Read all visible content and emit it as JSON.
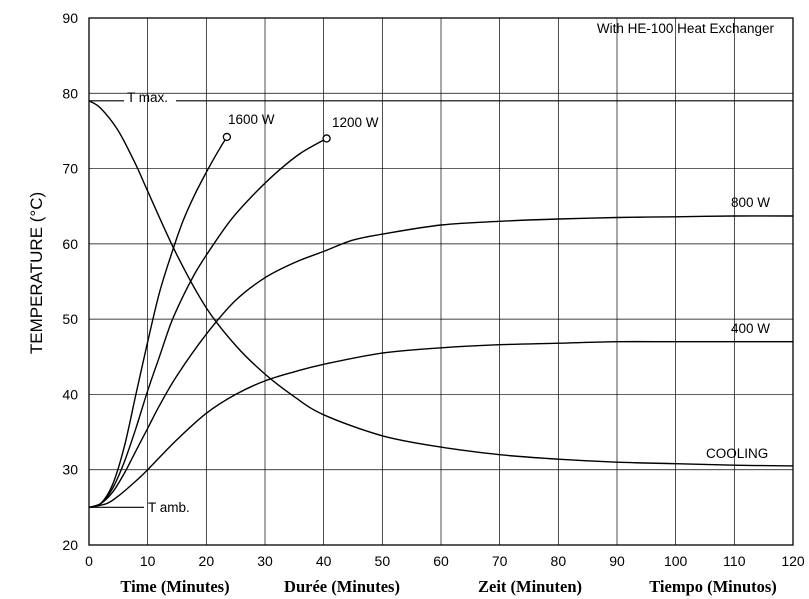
{
  "chart_data": {
    "type": "line",
    "title": "",
    "ylabel": "TEMPERATURE (°C)",
    "xlabels": [
      "Time  (Minutes)",
      "Durée  (Minutes)",
      "Zeit  (Minuten)",
      "Tiempo  (Minutos)"
    ],
    "xlim": [
      0,
      120
    ],
    "ylim": [
      20,
      90
    ],
    "xticks": [
      "0",
      "10",
      "20",
      "30",
      "40",
      "50",
      "60",
      "70",
      "80",
      "90",
      "100",
      "110",
      "120"
    ],
    "yticks": [
      "20",
      "30",
      "40",
      "50",
      "60",
      "70",
      "80",
      "90"
    ],
    "grid": true,
    "note": "With HE-100 Heat Exchanger",
    "tmax": {
      "label": "T max.",
      "value": 79
    },
    "tamb": {
      "label": "T amb.",
      "value": 25
    },
    "series": [
      {
        "name": "1600 W",
        "x": [
          0,
          2,
          4,
          6,
          8,
          10,
          12,
          14,
          16,
          18,
          20,
          22,
          23.5
        ],
        "y": [
          25,
          25.5,
          28,
          33,
          40,
          47,
          53.5,
          58.5,
          63,
          66.5,
          69.5,
          72.3,
          74.2
        ]
      },
      {
        "name": "1200 W",
        "x": [
          0,
          2,
          4,
          6,
          8,
          10,
          12,
          14,
          16,
          18,
          20,
          24,
          28,
          32,
          36,
          40.5
        ],
        "y": [
          25,
          25.5,
          27.5,
          31,
          35.5,
          40.5,
          45,
          49.5,
          53,
          56,
          58.5,
          63,
          66.5,
          69.5,
          72,
          74
        ]
      },
      {
        "name": "800 W",
        "x": [
          0,
          2,
          4,
          6,
          8,
          10,
          12,
          15,
          20,
          25,
          30,
          35,
          40,
          45,
          50,
          60,
          70,
          80,
          90,
          100,
          110,
          120
        ],
        "y": [
          25,
          25.5,
          27,
          29.5,
          32.5,
          35.5,
          38.5,
          42.5,
          48,
          52.5,
          55.5,
          57.5,
          59,
          60.5,
          61.3,
          62.5,
          63,
          63.3,
          63.5,
          63.6,
          63.7,
          63.7
        ]
      },
      {
        "name": "400 W",
        "x": [
          0,
          3,
          5,
          8,
          10,
          15,
          20,
          25,
          30,
          35,
          40,
          50,
          60,
          70,
          80,
          90,
          100,
          110,
          120
        ],
        "y": [
          25,
          25.5,
          26.5,
          28.5,
          30,
          34,
          37.5,
          40,
          41.8,
          43,
          44,
          45.5,
          46.2,
          46.6,
          46.8,
          47,
          47,
          47,
          47
        ]
      },
      {
        "name": "COOLING",
        "x": [
          0,
          2,
          5,
          8,
          10,
          15,
          20,
          25,
          30,
          35,
          40,
          50,
          60,
          70,
          80,
          90,
          100,
          110,
          120
        ],
        "y": [
          79,
          78,
          75,
          70.5,
          67,
          58.5,
          51.5,
          46.5,
          42.7,
          39.7,
          37.3,
          34.5,
          33,
          32,
          31.4,
          31,
          30.8,
          30.6,
          30.5
        ]
      }
    ]
  }
}
